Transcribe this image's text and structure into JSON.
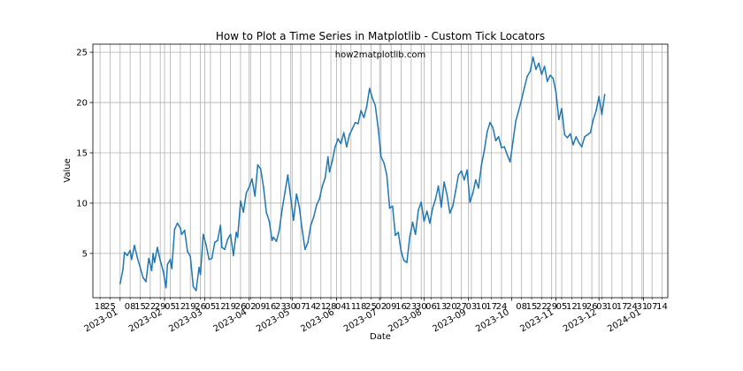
{
  "chart_data": {
    "type": "line",
    "title": "How to Plot a Time Series in Matplotlib - Custom Tick Locators",
    "annotation": "how2matplotlib.com",
    "xlabel": "Date",
    "ylabel": "Value",
    "xlim": [
      "2022-12-13",
      "2024-01-18"
    ],
    "ylim": [
      0.6,
      25.8
    ],
    "grid": true,
    "series_color": "#1f77b4",
    "y_ticks": [
      5,
      10,
      15,
      20,
      25
    ],
    "x_major_ticks": [
      {
        "date": "2023-01-01",
        "label": "2023-01"
      },
      {
        "date": "2023-02-01",
        "label": "2023-02"
      },
      {
        "date": "2023-03-01",
        "label": "2023-03"
      },
      {
        "date": "2023-04-01",
        "label": "2023-04"
      },
      {
        "date": "2023-05-01",
        "label": "2023-05"
      },
      {
        "date": "2023-06-01",
        "label": "2023-06"
      },
      {
        "date": "2023-07-01",
        "label": "2023-07"
      },
      {
        "date": "2023-08-01",
        "label": "2023-08"
      },
      {
        "date": "2023-09-01",
        "label": "2023-09"
      },
      {
        "date": "2023-10-01",
        "label": "2023-10"
      },
      {
        "date": "2023-11-01",
        "label": "2023-11"
      },
      {
        "date": "2023-12-01",
        "label": "2023-12"
      },
      {
        "date": "2024-01-01",
        "label": "2024-01"
      }
    ],
    "x_minor_tick_labels": [
      {
        "date": "2022-12-18",
        "label": "18"
      },
      {
        "date": "2022-12-25",
        "label": "25"
      },
      {
        "date": "2023-01-08",
        "label": "08"
      },
      {
        "date": "2023-01-15",
        "label": "15"
      },
      {
        "date": "2023-01-22",
        "label": "22"
      },
      {
        "date": "2023-01-29",
        "label": "29"
      },
      {
        "date": "2023-02-05",
        "label": "05"
      },
      {
        "date": "2023-02-12",
        "label": "12"
      },
      {
        "date": "2023-02-19",
        "label": "19"
      },
      {
        "date": "2023-02-26",
        "label": "26"
      },
      {
        "date": "2023-03-05",
        "label": "05"
      },
      {
        "date": "2023-03-12",
        "label": "12"
      },
      {
        "date": "2023-03-19",
        "label": "19"
      },
      {
        "date": "2023-03-26",
        "label": "26"
      },
      {
        "date": "2023-04-02",
        "label": "02"
      },
      {
        "date": "2023-04-09",
        "label": "09"
      },
      {
        "date": "2023-04-16",
        "label": "16"
      },
      {
        "date": "2023-04-23",
        "label": "23"
      },
      {
        "date": "2023-04-30",
        "label": "30"
      },
      {
        "date": "2023-05-07",
        "label": "07"
      },
      {
        "date": "2023-05-14",
        "label": "14"
      },
      {
        "date": "2023-05-21",
        "label": "21"
      },
      {
        "date": "2023-05-28",
        "label": "28"
      },
      {
        "date": "2023-06-04",
        "label": "04"
      },
      {
        "date": "2023-06-11",
        "label": "11"
      },
      {
        "date": "2023-06-18",
        "label": "18"
      },
      {
        "date": "2023-06-25",
        "label": "25"
      },
      {
        "date": "2023-07-02",
        "label": "02"
      },
      {
        "date": "2023-07-09",
        "label": "09"
      },
      {
        "date": "2023-07-16",
        "label": "16"
      },
      {
        "date": "2023-07-23",
        "label": "23"
      },
      {
        "date": "2023-07-30",
        "label": "30"
      },
      {
        "date": "2023-08-06",
        "label": "06"
      },
      {
        "date": "2023-08-13",
        "label": "13"
      },
      {
        "date": "2023-08-20",
        "label": "20"
      },
      {
        "date": "2023-08-27",
        "label": "27"
      },
      {
        "date": "2023-09-03",
        "label": "03"
      },
      {
        "date": "2023-09-10",
        "label": "10"
      },
      {
        "date": "2023-09-17",
        "label": "17"
      },
      {
        "date": "2023-09-24",
        "label": "24"
      },
      {
        "date": "2023-10-08",
        "label": "08"
      },
      {
        "date": "2023-10-15",
        "label": "15"
      },
      {
        "date": "2023-10-22",
        "label": "22"
      },
      {
        "date": "2023-10-29",
        "label": "29"
      },
      {
        "date": "2023-11-05",
        "label": "05"
      },
      {
        "date": "2023-11-12",
        "label": "12"
      },
      {
        "date": "2023-11-19",
        "label": "19"
      },
      {
        "date": "2023-11-26",
        "label": "26"
      },
      {
        "date": "2023-12-03",
        "label": "03"
      },
      {
        "date": "2023-12-10",
        "label": "10"
      },
      {
        "date": "2023-12-17",
        "label": "17"
      },
      {
        "date": "2023-12-24",
        "label": "24"
      },
      {
        "date": "2023-12-31",
        "label": "31"
      },
      {
        "date": "2024-01-07",
        "label": "07"
      },
      {
        "date": "2024-01-14",
        "label": "14"
      }
    ],
    "series": [
      {
        "points": [
          [
            "2023-01-01",
            2.0
          ],
          [
            "2023-01-03",
            3.4
          ],
          [
            "2023-01-04",
            5.1
          ],
          [
            "2023-01-06",
            4.8
          ],
          [
            "2023-01-08",
            5.3
          ],
          [
            "2023-01-09",
            4.4
          ],
          [
            "2023-01-11",
            5.8
          ],
          [
            "2023-01-13",
            4.6
          ],
          [
            "2023-01-15",
            3.6
          ],
          [
            "2023-01-17",
            2.6
          ],
          [
            "2023-01-19",
            2.2
          ],
          [
            "2023-01-21",
            4.5
          ],
          [
            "2023-01-23",
            3.3
          ],
          [
            "2023-01-24",
            5.0
          ],
          [
            "2023-01-25",
            4.1
          ],
          [
            "2023-01-27",
            5.6
          ],
          [
            "2023-01-29",
            4.3
          ],
          [
            "2023-01-31",
            3.3
          ],
          [
            "2023-02-02",
            1.6
          ],
          [
            "2023-02-03",
            3.9
          ],
          [
            "2023-02-05",
            4.4
          ],
          [
            "2023-02-06",
            3.5
          ],
          [
            "2023-02-08",
            7.4
          ],
          [
            "2023-02-10",
            8.0
          ],
          [
            "2023-02-12",
            7.5
          ],
          [
            "2023-02-13",
            6.9
          ],
          [
            "2023-02-15",
            7.3
          ],
          [
            "2023-02-17",
            5.2
          ],
          [
            "2023-02-19",
            4.7
          ],
          [
            "2023-02-21",
            1.7
          ],
          [
            "2023-02-23",
            1.3
          ],
          [
            "2023-02-25",
            3.6
          ],
          [
            "2023-02-26",
            2.9
          ],
          [
            "2023-02-28",
            6.9
          ],
          [
            "2023-03-02",
            5.8
          ],
          [
            "2023-03-04",
            4.4
          ],
          [
            "2023-03-06",
            4.5
          ],
          [
            "2023-03-08",
            6.1
          ],
          [
            "2023-03-10",
            6.3
          ],
          [
            "2023-03-12",
            7.8
          ],
          [
            "2023-03-13",
            5.6
          ],
          [
            "2023-03-15",
            5.4
          ],
          [
            "2023-03-17",
            6.4
          ],
          [
            "2023-03-19",
            6.9
          ],
          [
            "2023-03-21",
            4.8
          ],
          [
            "2023-03-23",
            7.1
          ],
          [
            "2023-03-24",
            6.6
          ],
          [
            "2023-03-26",
            10.2
          ],
          [
            "2023-03-28",
            9.1
          ],
          [
            "2023-03-30",
            11.0
          ],
          [
            "2023-04-01",
            11.6
          ],
          [
            "2023-04-03",
            12.4
          ],
          [
            "2023-04-05",
            10.7
          ],
          [
            "2023-04-07",
            13.8
          ],
          [
            "2023-04-09",
            13.4
          ],
          [
            "2023-04-11",
            11.6
          ],
          [
            "2023-04-13",
            9.1
          ],
          [
            "2023-04-15",
            8.2
          ],
          [
            "2023-04-17",
            6.3
          ],
          [
            "2023-04-18",
            6.6
          ],
          [
            "2023-04-20",
            6.2
          ],
          [
            "2023-04-22",
            7.3
          ],
          [
            "2023-04-24",
            9.4
          ],
          [
            "2023-04-26",
            11.1
          ],
          [
            "2023-04-28",
            12.8
          ],
          [
            "2023-04-30",
            10.5
          ],
          [
            "2023-05-02",
            8.3
          ],
          [
            "2023-05-04",
            10.9
          ],
          [
            "2023-05-06",
            9.6
          ],
          [
            "2023-05-08",
            7.3
          ],
          [
            "2023-05-10",
            5.4
          ],
          [
            "2023-05-12",
            6.1
          ],
          [
            "2023-05-14",
            7.8
          ],
          [
            "2023-05-16",
            8.6
          ],
          [
            "2023-05-18",
            9.8
          ],
          [
            "2023-05-20",
            10.4
          ],
          [
            "2023-05-22",
            11.7
          ],
          [
            "2023-05-24",
            12.5
          ],
          [
            "2023-05-26",
            14.6
          ],
          [
            "2023-05-27",
            13.1
          ],
          [
            "2023-05-29",
            14.2
          ],
          [
            "2023-05-31",
            15.6
          ],
          [
            "2023-06-02",
            16.4
          ],
          [
            "2023-06-04",
            15.9
          ],
          [
            "2023-06-06",
            17.0
          ],
          [
            "2023-06-08",
            15.6
          ],
          [
            "2023-06-10",
            16.8
          ],
          [
            "2023-06-12",
            17.4
          ],
          [
            "2023-06-14",
            18.0
          ],
          [
            "2023-06-16",
            17.9
          ],
          [
            "2023-06-18",
            19.2
          ],
          [
            "2023-06-20",
            18.5
          ],
          [
            "2023-06-22",
            19.6
          ],
          [
            "2023-06-24",
            21.4
          ],
          [
            "2023-06-26",
            20.4
          ],
          [
            "2023-06-28",
            19.7
          ],
          [
            "2023-06-30",
            17.4
          ],
          [
            "2023-07-02",
            14.6
          ],
          [
            "2023-07-04",
            14.0
          ],
          [
            "2023-07-06",
            12.8
          ],
          [
            "2023-07-08",
            9.5
          ],
          [
            "2023-07-10",
            9.7
          ],
          [
            "2023-07-12",
            6.8
          ],
          [
            "2023-07-14",
            7.1
          ],
          [
            "2023-07-16",
            5.2
          ],
          [
            "2023-07-18",
            4.3
          ],
          [
            "2023-07-20",
            4.1
          ],
          [
            "2023-07-22",
            6.6
          ],
          [
            "2023-07-24",
            8.1
          ],
          [
            "2023-07-26",
            6.9
          ],
          [
            "2023-07-28",
            9.3
          ],
          [
            "2023-07-30",
            10.1
          ],
          [
            "2023-08-01",
            8.2
          ],
          [
            "2023-08-03",
            9.2
          ],
          [
            "2023-08-05",
            8.0
          ],
          [
            "2023-08-07",
            9.5
          ],
          [
            "2023-08-09",
            10.4
          ],
          [
            "2023-08-11",
            11.7
          ],
          [
            "2023-08-13",
            9.6
          ],
          [
            "2023-08-15",
            12.1
          ],
          [
            "2023-08-17",
            10.8
          ],
          [
            "2023-08-19",
            9.0
          ],
          [
            "2023-08-21",
            9.7
          ],
          [
            "2023-08-23",
            11.2
          ],
          [
            "2023-08-25",
            12.8
          ],
          [
            "2023-08-27",
            13.2
          ],
          [
            "2023-08-29",
            12.3
          ],
          [
            "2023-08-31",
            13.3
          ],
          [
            "2023-09-02",
            10.1
          ],
          [
            "2023-09-04",
            11.0
          ],
          [
            "2023-09-06",
            12.3
          ],
          [
            "2023-09-08",
            11.5
          ],
          [
            "2023-09-10",
            13.8
          ],
          [
            "2023-09-12",
            15.2
          ],
          [
            "2023-09-14",
            17.1
          ],
          [
            "2023-09-16",
            18.0
          ],
          [
            "2023-09-18",
            17.5
          ],
          [
            "2023-09-20",
            16.2
          ],
          [
            "2023-09-22",
            16.6
          ],
          [
            "2023-09-24",
            15.5
          ],
          [
            "2023-09-26",
            15.6
          ],
          [
            "2023-09-28",
            14.8
          ],
          [
            "2023-09-30",
            14.1
          ],
          [
            "2023-10-02",
            16.1
          ],
          [
            "2023-10-04",
            18.2
          ],
          [
            "2023-10-06",
            19.2
          ],
          [
            "2023-10-08",
            20.3
          ],
          [
            "2023-10-10",
            21.5
          ],
          [
            "2023-10-12",
            22.6
          ],
          [
            "2023-10-14",
            23.1
          ],
          [
            "2023-10-16",
            24.5
          ],
          [
            "2023-10-18",
            23.3
          ],
          [
            "2023-10-20",
            23.9
          ],
          [
            "2023-10-22",
            22.8
          ],
          [
            "2023-10-24",
            23.6
          ],
          [
            "2023-10-26",
            22.1
          ],
          [
            "2023-10-28",
            22.7
          ],
          [
            "2023-10-30",
            22.4
          ],
          [
            "2023-11-01",
            21.0
          ],
          [
            "2023-11-03",
            18.3
          ],
          [
            "2023-11-05",
            19.4
          ],
          [
            "2023-11-07",
            16.8
          ],
          [
            "2023-11-09",
            16.5
          ],
          [
            "2023-11-11",
            16.9
          ],
          [
            "2023-11-13",
            15.8
          ],
          [
            "2023-11-15",
            16.6
          ],
          [
            "2023-11-17",
            16.0
          ],
          [
            "2023-11-19",
            15.6
          ],
          [
            "2023-11-21",
            16.6
          ],
          [
            "2023-11-23",
            16.8
          ],
          [
            "2023-11-25",
            17.0
          ],
          [
            "2023-11-27",
            18.3
          ],
          [
            "2023-11-29",
            19.2
          ],
          [
            "2023-12-01",
            20.6
          ],
          [
            "2023-12-03",
            18.8
          ],
          [
            "2023-12-05",
            20.8
          ]
        ]
      }
    ]
  }
}
